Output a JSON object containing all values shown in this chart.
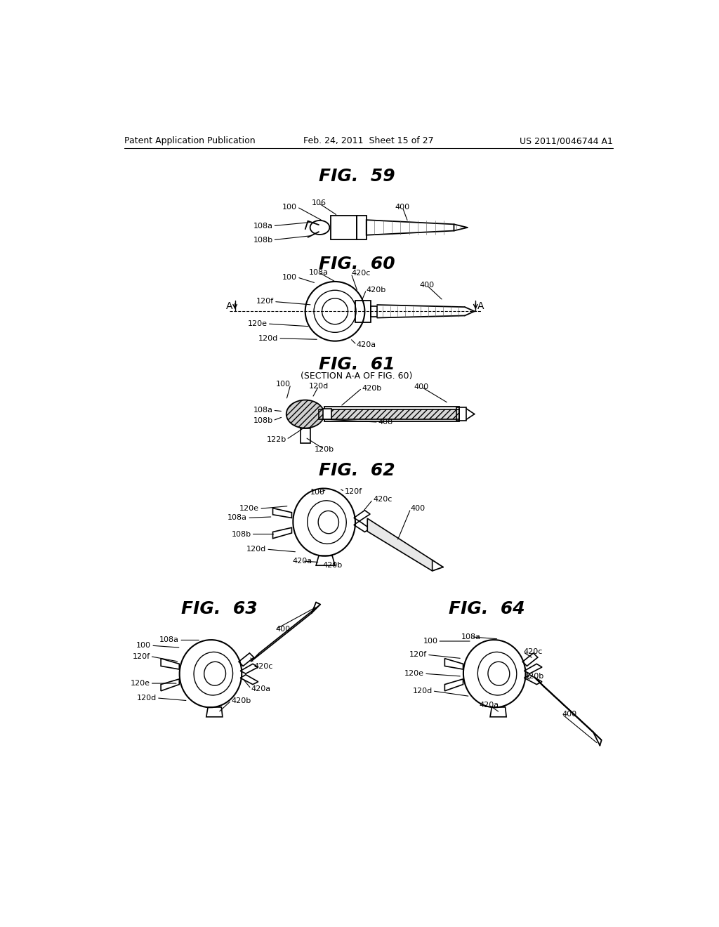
{
  "background_color": "#ffffff",
  "header_left": "Patent Application Publication",
  "header_center": "Feb. 24, 2011  Sheet 15 of 27",
  "header_right": "US 2011/0046744 A1",
  "line_color": "#000000",
  "text_color": "#000000"
}
